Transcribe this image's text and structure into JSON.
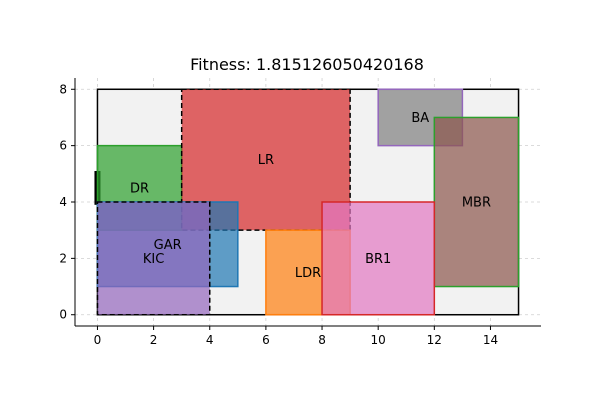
{
  "chart_data": {
    "type": "floorplan",
    "title": "Fitness: 1.815126050420168",
    "xlim": [
      -0.8,
      15.8
    ],
    "ylim": [
      -0.4,
      8.4
    ],
    "xticks": [
      0,
      2,
      4,
      6,
      8,
      10,
      12,
      14
    ],
    "yticks": [
      0,
      2,
      4,
      6,
      8
    ],
    "grid": true,
    "boundary": {
      "x": 0,
      "y": 0,
      "w": 15,
      "h": 8
    },
    "entrance": {
      "x": 0,
      "y": 3.9,
      "w": 0.22,
      "h": 1.2
    },
    "rooms": [
      {
        "name": "DR",
        "x": 0,
        "y": 3,
        "w": 3,
        "h": 3,
        "fill": "#2ca02c",
        "stroke": "#2ca02c",
        "dashed": false,
        "label_x": 1.5,
        "label_y": 4.5
      },
      {
        "name": "LR",
        "x": 3,
        "y": 3,
        "w": 6,
        "h": 5,
        "fill": "#d62728",
        "stroke": "#000000",
        "dashed": true,
        "label_x": 6,
        "label_y": 5.5
      },
      {
        "name": "BA",
        "x": 10,
        "y": 6,
        "w": 3,
        "h": 2,
        "fill": "#7f7f7f",
        "stroke": "#9467bd",
        "dashed": false,
        "label_x": 11.5,
        "label_y": 7
      },
      {
        "name": "MBR",
        "x": 12,
        "y": 1,
        "w": 3,
        "h": 6,
        "fill": "#8c564b",
        "stroke": "#2ca02c",
        "dashed": false,
        "label_x": 13.5,
        "label_y": 4
      },
      {
        "name": "KIC",
        "x": 0,
        "y": 1,
        "w": 5,
        "h": 3,
        "fill": "#1f77b4",
        "stroke": "#1f77b4",
        "dashed": false,
        "label_x": 2,
        "label_y": 2
      },
      {
        "name": "GAR",
        "x": 0,
        "y": 0,
        "w": 4,
        "h": 4,
        "fill": "#9467bd",
        "stroke": "#000000",
        "dashed": true,
        "label_x": 2.5,
        "label_y": 2.5
      },
      {
        "name": "LDR",
        "x": 6,
        "y": 0,
        "w": 3,
        "h": 3,
        "fill": "#ff7f0e",
        "stroke": "#ff7f0e",
        "dashed": false,
        "label_x": 7.5,
        "label_y": 1.5
      },
      {
        "name": "BR1",
        "x": 8,
        "y": 0,
        "w": 4,
        "h": 4,
        "fill": "#e377c2",
        "stroke": "#d62728",
        "dashed": false,
        "label_x": 10,
        "label_y": 2
      }
    ]
  }
}
